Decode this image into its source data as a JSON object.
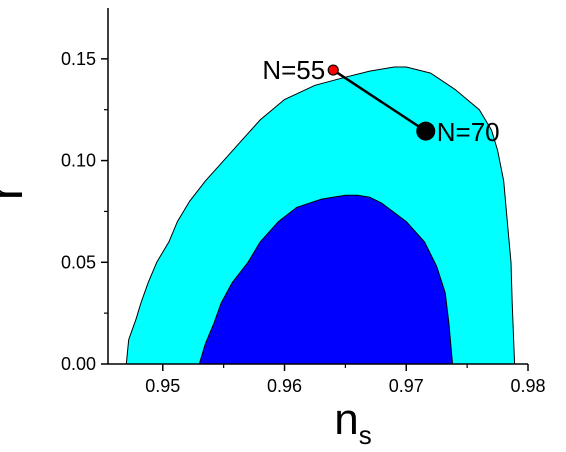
{
  "chart_data": {
    "type": "area",
    "title": "",
    "xlabel_main": "n",
    "xlabel_sub": "s",
    "ylabel": "r",
    "xlim": [
      0.9455,
      0.98
    ],
    "ylim": [
      0.0,
      0.175
    ],
    "x_ticks": [
      0.95,
      0.96,
      0.97,
      0.98
    ],
    "x_tick_labels": [
      "0.95",
      "0.96",
      "0.97",
      "0.98"
    ],
    "y_ticks": [
      0.0,
      0.05,
      0.1,
      0.15
    ],
    "y_tick_labels": [
      "0.00",
      "0.05",
      "0.10",
      "0.15"
    ],
    "grid": false,
    "legend": "none",
    "colors": {
      "outer_region": "#00FFFF",
      "inner_region": "#0000FF",
      "line": "#000000",
      "point_n55": "#FF0000",
      "point_n70": "#000000"
    },
    "series": [
      {
        "kind": "contour",
        "points": [
          [
            0.947,
            0.0
          ],
          [
            0.9472,
            0.012
          ],
          [
            0.9478,
            0.022
          ],
          [
            0.9482,
            0.03
          ],
          [
            0.9488,
            0.04
          ],
          [
            0.9495,
            0.05
          ],
          [
            0.9505,
            0.06
          ],
          [
            0.9512,
            0.07
          ],
          [
            0.9522,
            0.08
          ],
          [
            0.9535,
            0.09
          ],
          [
            0.955,
            0.1
          ],
          [
            0.9565,
            0.11
          ],
          [
            0.958,
            0.12
          ],
          [
            0.96,
            0.13
          ],
          [
            0.9625,
            0.137
          ],
          [
            0.965,
            0.141
          ],
          [
            0.967,
            0.144
          ],
          [
            0.969,
            0.146
          ],
          [
            0.97,
            0.146
          ],
          [
            0.972,
            0.143
          ],
          [
            0.974,
            0.135
          ],
          [
            0.976,
            0.125
          ],
          [
            0.977,
            0.115
          ],
          [
            0.9775,
            0.105
          ],
          [
            0.978,
            0.09
          ],
          [
            0.9783,
            0.07
          ],
          [
            0.9786,
            0.05
          ],
          [
            0.9787,
            0.03
          ],
          [
            0.9789,
            0.0
          ]
        ]
      },
      {
        "kind": "contour",
        "points": [
          [
            0.953,
            0.0
          ],
          [
            0.9535,
            0.01
          ],
          [
            0.9542,
            0.02
          ],
          [
            0.9548,
            0.03
          ],
          [
            0.9557,
            0.04
          ],
          [
            0.957,
            0.05
          ],
          [
            0.958,
            0.06
          ],
          [
            0.9595,
            0.07
          ],
          [
            0.961,
            0.077
          ],
          [
            0.963,
            0.081
          ],
          [
            0.965,
            0.083
          ],
          [
            0.966,
            0.083
          ],
          [
            0.967,
            0.082
          ],
          [
            0.968,
            0.079
          ],
          [
            0.97,
            0.07
          ],
          [
            0.9715,
            0.06
          ],
          [
            0.9725,
            0.048
          ],
          [
            0.9732,
            0.035
          ],
          [
            0.9735,
            0.02
          ],
          [
            0.9738,
            0.0
          ]
        ]
      },
      {
        "kind": "prediction",
        "points": [
          {
            "n": 55,
            "label": "N=55",
            "x": 0.964,
            "y": 0.1445
          },
          {
            "n": 70,
            "label": "N=70",
            "x": 0.9716,
            "y": 0.1145
          }
        ]
      }
    ]
  }
}
